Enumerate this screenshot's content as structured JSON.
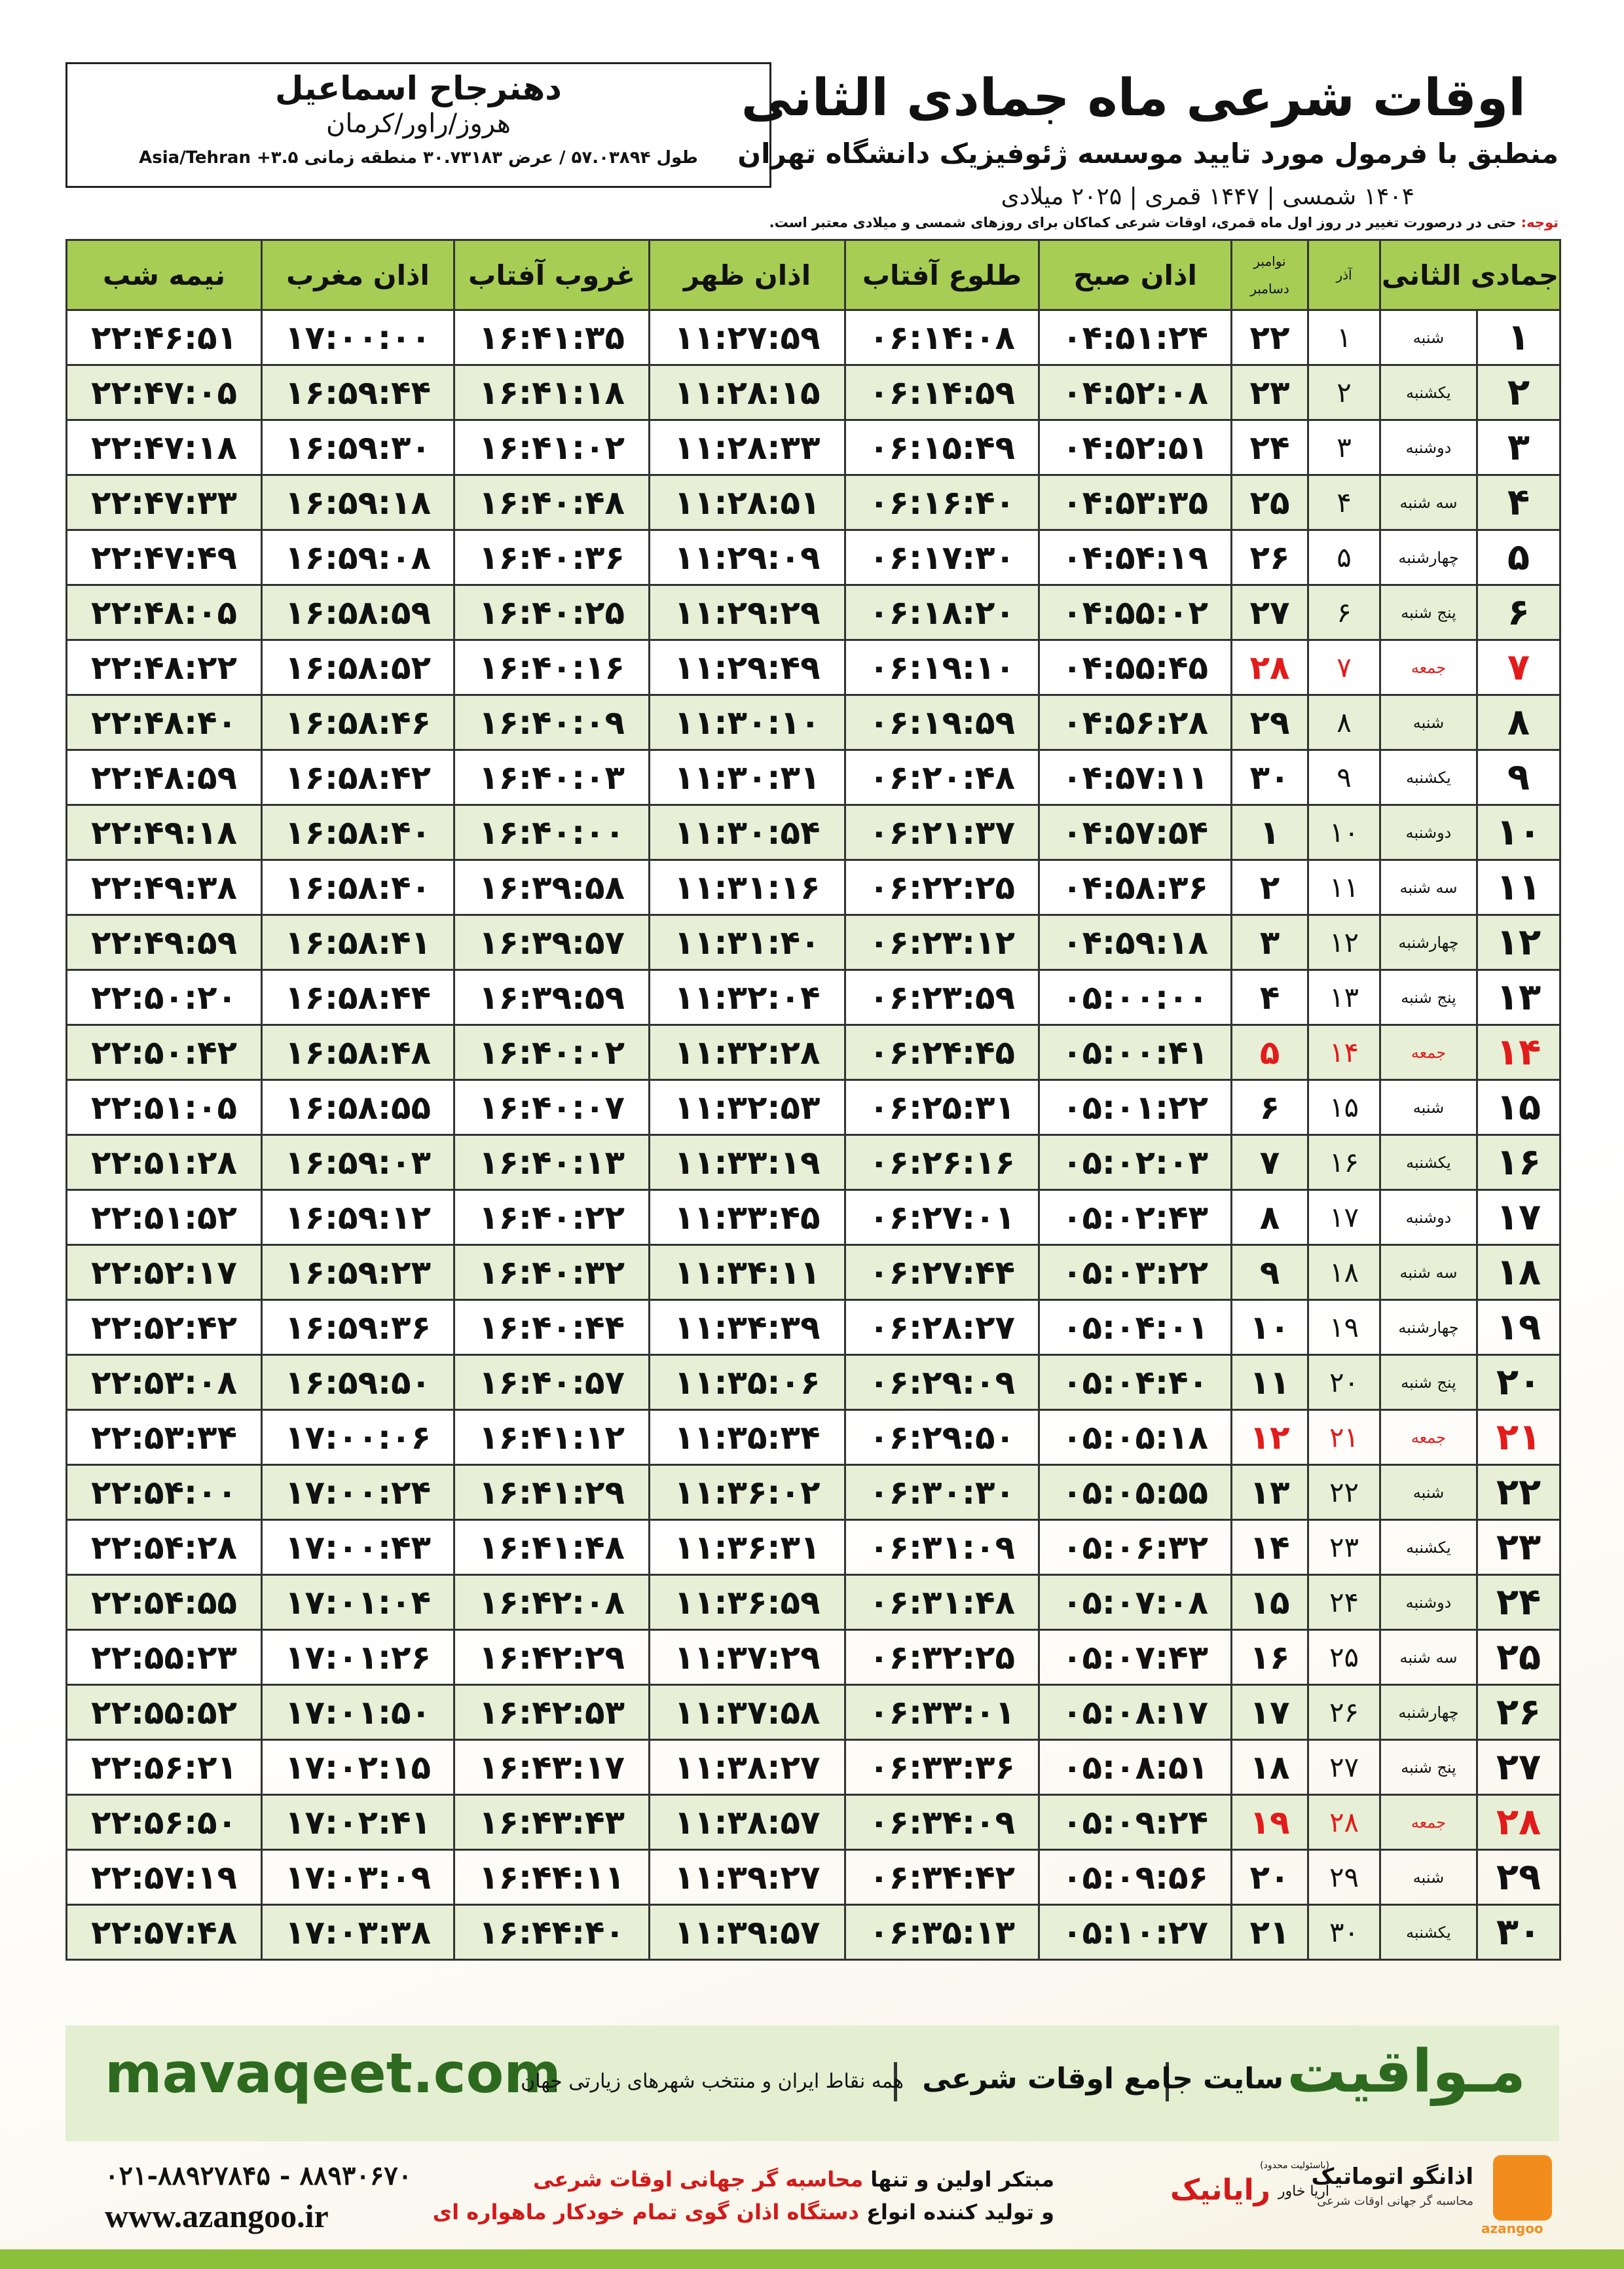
{
  "header": {
    "title": "اوقات شرعی ماه جمادی الثانی",
    "subtitle": "منطبق با فرمول مورد تایید موسسه ژئوفیزیک دانشگاه تهران",
    "dates": "۱۴۰۴ شمسی | ۱۴۴۷ قمری | ۲۰۲۵ میلادی"
  },
  "location": {
    "name": "دهنرجاح اسماعیل",
    "region": "هروز/راور/کرمان",
    "coords": "طول ۵۷.۰۳۸۹۴ / عرض ۳۰.۷۳۱۸۳ منطقه زمانی ۳.۵+ Asia/Tehran"
  },
  "note": {
    "label": "توجه:",
    "text": " حتی در درصورت تغییر در روز اول ماه قمری، اوقات شرعی کماکان برای روزهای شمسی و میلادی معتبر است."
  },
  "table": {
    "header": {
      "month": "جمادی الثانی",
      "azar": "آذر",
      "november": "نوامبر",
      "december": "دسامبر",
      "fajr": "اذان صبح",
      "sunrise": "طلوع آفتاب",
      "dhuhr": "اذان ظهر",
      "sunset": "غروب آفتاب",
      "maghrib": "اذان مغرب",
      "midnight": "نیمه شب"
    },
    "rows": [
      [
        "۱",
        "شنبه",
        "۱",
        "۲۲",
        "۰۴:۵۱:۲۴",
        "۰۶:۱۴:۰۸",
        "۱۱:۲۷:۵۹",
        "۱۶:۴۱:۳۵",
        "۱۷:۰۰:۰۰",
        "۲۲:۴۶:۵۱"
      ],
      [
        "۲",
        "یکشنبه",
        "۲",
        "۲۳",
        "۰۴:۵۲:۰۸",
        "۰۶:۱۴:۵۹",
        "۱۱:۲۸:۱۵",
        "۱۶:۴۱:۱۸",
        "۱۶:۵۹:۴۴",
        "۲۲:۴۷:۰۵"
      ],
      [
        "۳",
        "دوشنبه",
        "۳",
        "۲۴",
        "۰۴:۵۲:۵۱",
        "۰۶:۱۵:۴۹",
        "۱۱:۲۸:۳۳",
        "۱۶:۴۱:۰۲",
        "۱۶:۵۹:۳۰",
        "۲۲:۴۷:۱۸"
      ],
      [
        "۴",
        "سه شنبه",
        "۴",
        "۲۵",
        "۰۴:۵۳:۳۵",
        "۰۶:۱۶:۴۰",
        "۱۱:۲۸:۵۱",
        "۱۶:۴۰:۴۸",
        "۱۶:۵۹:۱۸",
        "۲۲:۴۷:۳۳"
      ],
      [
        "۵",
        "چهارشنبه",
        "۵",
        "۲۶",
        "۰۴:۵۴:۱۹",
        "۰۶:۱۷:۳۰",
        "۱۱:۲۹:۰۹",
        "۱۶:۴۰:۳۶",
        "۱۶:۵۹:۰۸",
        "۲۲:۴۷:۴۹"
      ],
      [
        "۶",
        "پنج شنبه",
        "۶",
        "۲۷",
        "۰۴:۵۵:۰۲",
        "۰۶:۱۸:۲۰",
        "۱۱:۲۹:۲۹",
        "۱۶:۴۰:۲۵",
        "۱۶:۵۸:۵۹",
        "۲۲:۴۸:۰۵"
      ],
      [
        "۷",
        "جمعه",
        "۷",
        "۲۸",
        "۰۴:۵۵:۴۵",
        "۰۶:۱۹:۱۰",
        "۱۱:۲۹:۴۹",
        "۱۶:۴۰:۱۶",
        "۱۶:۵۸:۵۲",
        "۲۲:۴۸:۲۲"
      ],
      [
        "۸",
        "شنبه",
        "۸",
        "۲۹",
        "۰۴:۵۶:۲۸",
        "۰۶:۱۹:۵۹",
        "۱۱:۳۰:۱۰",
        "۱۶:۴۰:۰۹",
        "۱۶:۵۸:۴۶",
        "۲۲:۴۸:۴۰"
      ],
      [
        "۹",
        "یکشنبه",
        "۹",
        "۳۰",
        "۰۴:۵۷:۱۱",
        "۰۶:۲۰:۴۸",
        "۱۱:۳۰:۳۱",
        "۱۶:۴۰:۰۳",
        "۱۶:۵۸:۴۲",
        "۲۲:۴۸:۵۹"
      ],
      [
        "۱۰",
        "دوشنبه",
        "۱۰",
        "۱",
        "۰۴:۵۷:۵۴",
        "۰۶:۲۱:۳۷",
        "۱۱:۳۰:۵۴",
        "۱۶:۴۰:۰۰",
        "۱۶:۵۸:۴۰",
        "۲۲:۴۹:۱۸"
      ],
      [
        "۱۱",
        "سه شنبه",
        "۱۱",
        "۲",
        "۰۴:۵۸:۳۶",
        "۰۶:۲۲:۲۵",
        "۱۱:۳۱:۱۶",
        "۱۶:۳۹:۵۸",
        "۱۶:۵۸:۴۰",
        "۲۲:۴۹:۳۸"
      ],
      [
        "۱۲",
        "چهارشنبه",
        "۱۲",
        "۳",
        "۰۴:۵۹:۱۸",
        "۰۶:۲۳:۱۲",
        "۱۱:۳۱:۴۰",
        "۱۶:۳۹:۵۷",
        "۱۶:۵۸:۴۱",
        "۲۲:۴۹:۵۹"
      ],
      [
        "۱۳",
        "پنج شنبه",
        "۱۳",
        "۴",
        "۰۵:۰۰:۰۰",
        "۰۶:۲۳:۵۹",
        "۱۱:۳۲:۰۴",
        "۱۶:۳۹:۵۹",
        "۱۶:۵۸:۴۴",
        "۲۲:۵۰:۲۰"
      ],
      [
        "۱۴",
        "جمعه",
        "۱۴",
        "۵",
        "۰۵:۰۰:۴۱",
        "۰۶:۲۴:۴۵",
        "۱۱:۳۲:۲۸",
        "۱۶:۴۰:۰۲",
        "۱۶:۵۸:۴۸",
        "۲۲:۵۰:۴۲"
      ],
      [
        "۱۵",
        "شنبه",
        "۱۵",
        "۶",
        "۰۵:۰۱:۲۲",
        "۰۶:۲۵:۳۱",
        "۱۱:۳۲:۵۳",
        "۱۶:۴۰:۰۷",
        "۱۶:۵۸:۵۵",
        "۲۲:۵۱:۰۵"
      ],
      [
        "۱۶",
        "یکشنبه",
        "۱۶",
        "۷",
        "۰۵:۰۲:۰۳",
        "۰۶:۲۶:۱۶",
        "۱۱:۳۳:۱۹",
        "۱۶:۴۰:۱۳",
        "۱۶:۵۹:۰۳",
        "۲۲:۵۱:۲۸"
      ],
      [
        "۱۷",
        "دوشنبه",
        "۱۷",
        "۸",
        "۰۵:۰۲:۴۳",
        "۰۶:۲۷:۰۱",
        "۱۱:۳۳:۴۵",
        "۱۶:۴۰:۲۲",
        "۱۶:۵۹:۱۲",
        "۲۲:۵۱:۵۲"
      ],
      [
        "۱۸",
        "سه شنبه",
        "۱۸",
        "۹",
        "۰۵:۰۳:۲۲",
        "۰۶:۲۷:۴۴",
        "۱۱:۳۴:۱۱",
        "۱۶:۴۰:۳۲",
        "۱۶:۵۹:۲۳",
        "۲۲:۵۲:۱۷"
      ],
      [
        "۱۹",
        "چهارشنبه",
        "۱۹",
        "۱۰",
        "۰۵:۰۴:۰۱",
        "۰۶:۲۸:۲۷",
        "۱۱:۳۴:۳۹",
        "۱۶:۴۰:۴۴",
        "۱۶:۵۹:۳۶",
        "۲۲:۵۲:۴۲"
      ],
      [
        "۲۰",
        "پنج شنبه",
        "۲۰",
        "۱۱",
        "۰۵:۰۴:۴۰",
        "۰۶:۲۹:۰۹",
        "۱۱:۳۵:۰۶",
        "۱۶:۴۰:۵۷",
        "۱۶:۵۹:۵۰",
        "۲۲:۵۳:۰۸"
      ],
      [
        "۲۱",
        "جمعه",
        "۲۱",
        "۱۲",
        "۰۵:۰۵:۱۸",
        "۰۶:۲۹:۵۰",
        "۱۱:۳۵:۳۴",
        "۱۶:۴۱:۱۲",
        "۱۷:۰۰:۰۶",
        "۲۲:۵۳:۳۴"
      ],
      [
        "۲۲",
        "شنبه",
        "۲۲",
        "۱۳",
        "۰۵:۰۵:۵۵",
        "۰۶:۳۰:۳۰",
        "۱۱:۳۶:۰۲",
        "۱۶:۴۱:۲۹",
        "۱۷:۰۰:۲۴",
        "۲۲:۵۴:۰۰"
      ],
      [
        "۲۳",
        "یکشنبه",
        "۲۳",
        "۱۴",
        "۰۵:۰۶:۳۲",
        "۰۶:۳۱:۰۹",
        "۱۱:۳۶:۳۱",
        "۱۶:۴۱:۴۸",
        "۱۷:۰۰:۴۳",
        "۲۲:۵۴:۲۸"
      ],
      [
        "۲۴",
        "دوشنبه",
        "۲۴",
        "۱۵",
        "۰۵:۰۷:۰۸",
        "۰۶:۳۱:۴۸",
        "۱۱:۳۶:۵۹",
        "۱۶:۴۲:۰۸",
        "۱۷:۰۱:۰۴",
        "۲۲:۵۴:۵۵"
      ],
      [
        "۲۵",
        "سه شنبه",
        "۲۵",
        "۱۶",
        "۰۵:۰۷:۴۳",
        "۰۶:۳۲:۲۵",
        "۱۱:۳۷:۲۹",
        "۱۶:۴۲:۲۹",
        "۱۷:۰۱:۲۶",
        "۲۲:۵۵:۲۳"
      ],
      [
        "۲۶",
        "چهارشنبه",
        "۲۶",
        "۱۷",
        "۰۵:۰۸:۱۷",
        "۰۶:۳۳:۰۱",
        "۱۱:۳۷:۵۸",
        "۱۶:۴۲:۵۳",
        "۱۷:۰۱:۵۰",
        "۲۲:۵۵:۵۲"
      ],
      [
        "۲۷",
        "پنج شنبه",
        "۲۷",
        "۱۸",
        "۰۵:۰۸:۵۱",
        "۰۶:۳۳:۳۶",
        "۱۱:۳۸:۲۷",
        "۱۶:۴۳:۱۷",
        "۱۷:۰۲:۱۵",
        "۲۲:۵۶:۲۱"
      ],
      [
        "۲۸",
        "جمعه",
        "۲۸",
        "۱۹",
        "۰۵:۰۹:۲۴",
        "۰۶:۳۴:۰۹",
        "۱۱:۳۸:۵۷",
        "۱۶:۴۳:۴۳",
        "۱۷:۰۲:۴۱",
        "۲۲:۵۶:۵۰"
      ],
      [
        "۲۹",
        "شنبه",
        "۲۹",
        "۲۰",
        "۰۵:۰۹:۵۶",
        "۰۶:۳۴:۴۲",
        "۱۱:۳۹:۲۷",
        "۱۶:۴۴:۱۱",
        "۱۷:۰۳:۰۹",
        "۲۲:۵۷:۱۹"
      ],
      [
        "۳۰",
        "یکشنبه",
        "۳۰",
        "۲۱",
        "۰۵:۱۰:۲۷",
        "۰۶:۳۵:۱۳",
        "۱۱:۳۹:۵۷",
        "۱۶:۴۴:۴۰",
        "۱۷:۰۳:۳۸",
        "۲۲:۵۷:۴۸"
      ]
    ]
  },
  "banner": {
    "brand": "مـواقیت",
    "tagline": "سایت جامع اوقات شرعی",
    "coverage": "همه نقاط ایران و منتخب شهرهای زیارتی جهان",
    "url": "mavaqeet.com"
  },
  "footer": {
    "phones": "۰۲۱-۸۸۹۲۷۸۴۵ - ۸۸۹۳۰۶۷۰",
    "website": "www.azangoo.ir",
    "line1_prefix": "مبتکر اولین و تنها ",
    "line1_highlight": "محاسبه گر جهانی اوقات شرعی",
    "line2_prefix": "و تولید کننده انواع ",
    "line2_highlight": "دستگاه اذان گوی تمام خودکار ماهواره ای",
    "logo1_name": "رایانیک",
    "logo1_sub": "آریا خاور",
    "logo1_note": "(باسئولیت محدود)",
    "logo2_name": "اذانگو اتوماتیک",
    "logo2_sub": "محاسبه گر جهانی اوقات شرعی",
    "logo2_brand": "azangoo"
  }
}
